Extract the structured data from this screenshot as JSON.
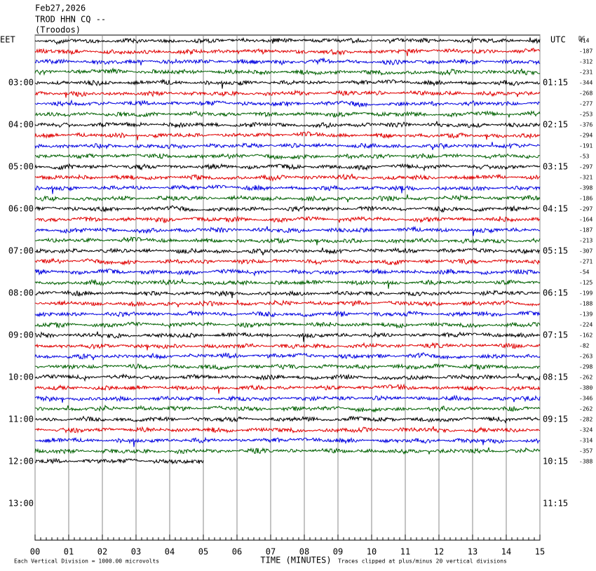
{
  "header": {
    "date": "Feb27,2026",
    "station": "TROD HHN CQ --",
    "location": "(Troodos)"
  },
  "left_axis": {
    "title": "EET",
    "labels": [
      "03:00",
      "04:00",
      "05:00",
      "06:00",
      "07:00",
      "08:00",
      "09:00",
      "10:00",
      "11:00",
      "12:00",
      "13:00"
    ]
  },
  "right_axis": {
    "title": "UTC",
    "labels": [
      "01:15",
      "02:15",
      "03:15",
      "04:15",
      "05:15",
      "06:15",
      "07:15",
      "08:15",
      "09:15",
      "10:15",
      "11:15"
    ]
  },
  "dc": {
    "title": "DC",
    "values": [
      414,
      -187,
      -312,
      -231,
      -344,
      -268,
      -277,
      -253,
      -376,
      -294,
      -191,
      -53,
      -297,
      -321,
      -398,
      -186,
      -297,
      -164,
      -187,
      -213,
      -307,
      -271,
      -54,
      -125,
      -199,
      -188,
      -139,
      -224,
      -162,
      -82,
      -263,
      -298,
      -262,
      -380,
      -346,
      -262,
      -282,
      -324,
      -314,
      -357,
      -388
    ]
  },
  "x_axis": {
    "title": "TIME (MINUTES)",
    "labels": [
      "00",
      "01",
      "02",
      "03",
      "04",
      "05",
      "06",
      "07",
      "08",
      "09",
      "10",
      "11",
      "12",
      "13",
      "14",
      "15"
    ]
  },
  "footer": {
    "scale": "Each Vertical Division = 1000.00 microvolts",
    "clip": "Traces clipped at plus/minus 20 vertical divisions"
  },
  "trace_colors": [
    "#000000",
    "#e00000",
    "#0000e0",
    "#006000"
  ]
}
